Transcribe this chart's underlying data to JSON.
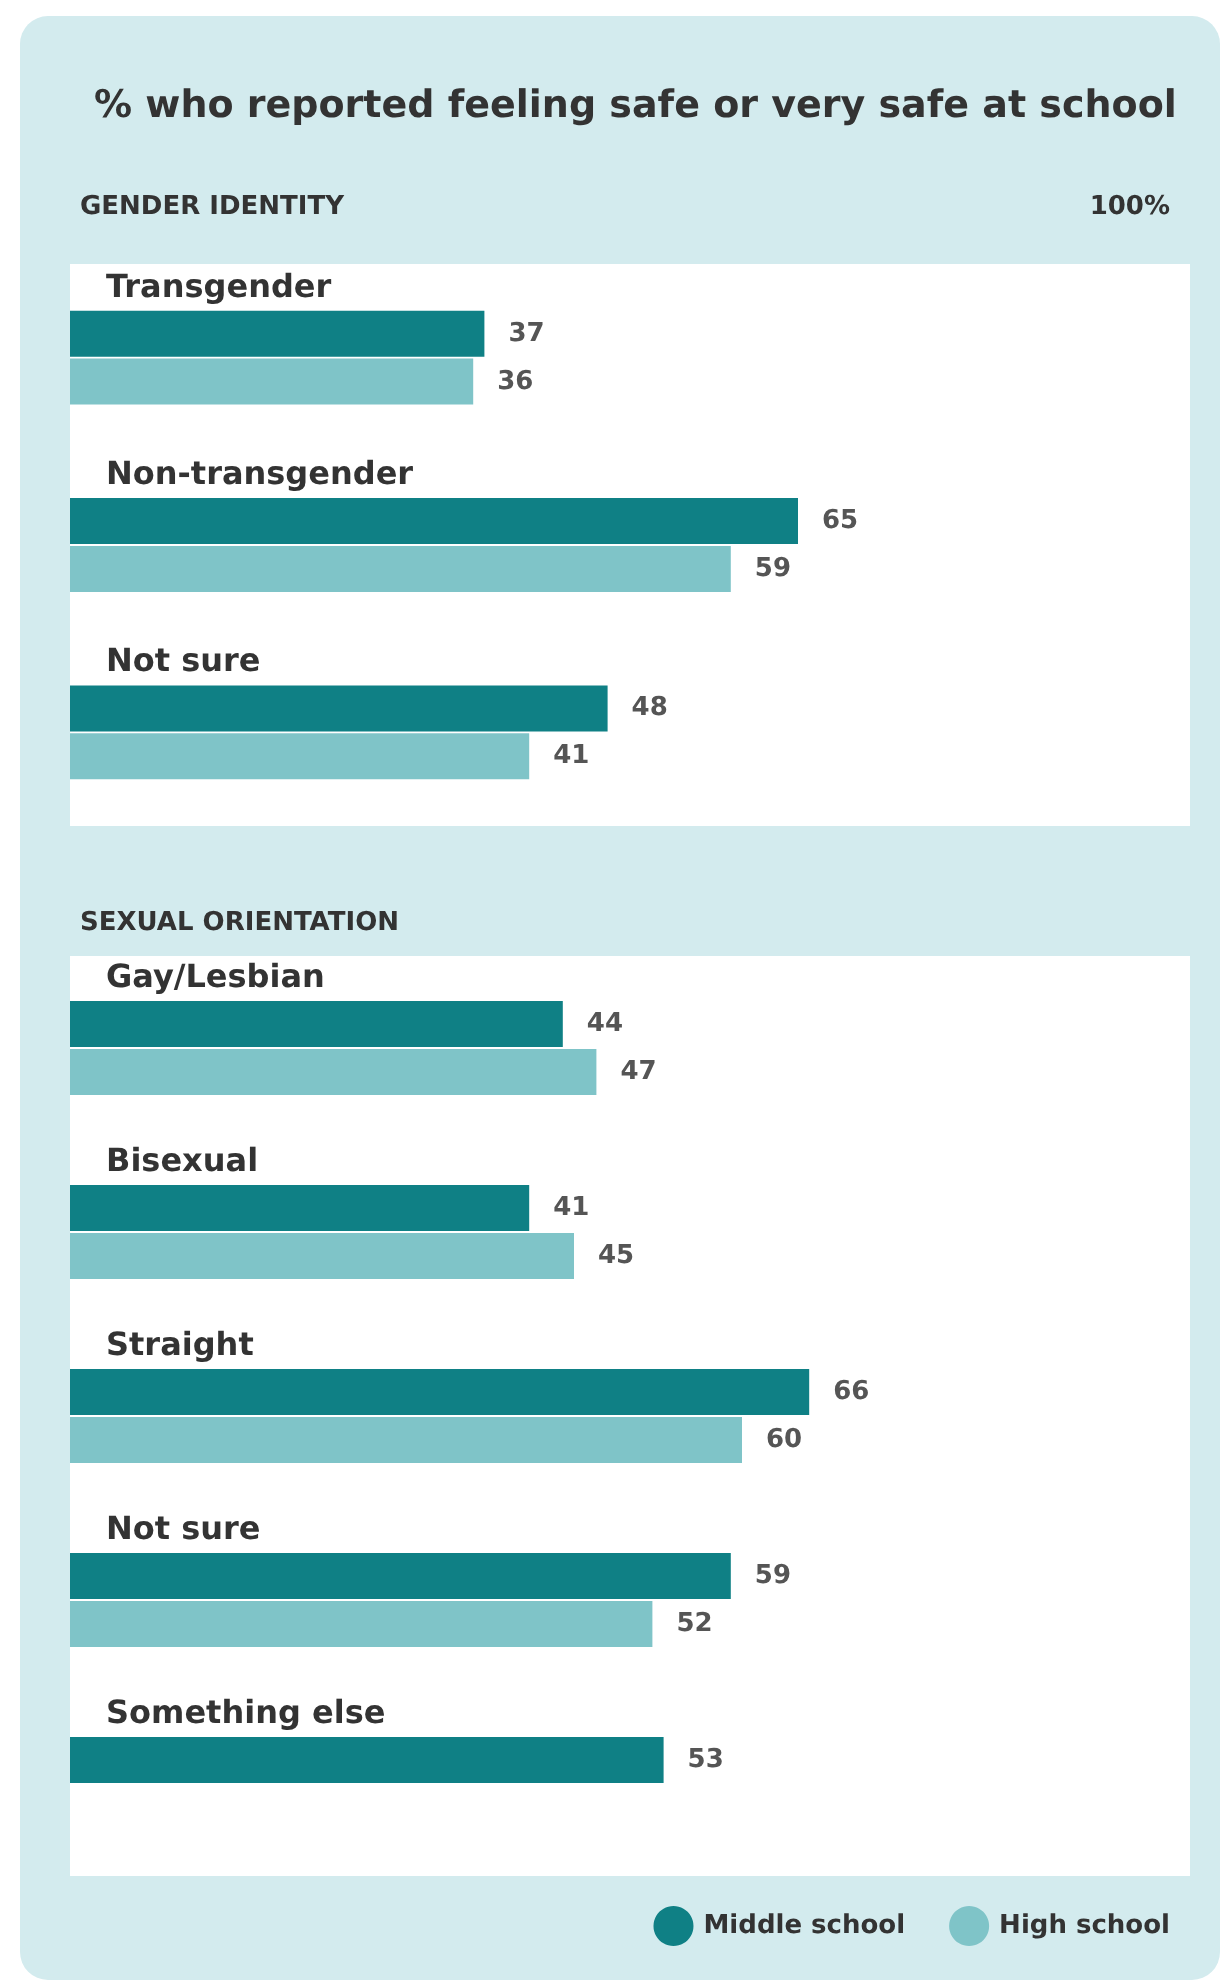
{
  "chart_data": [
    {
      "type": "bar",
      "orientation": "horizontal",
      "title": "% who reported feeling safe or very safe at school",
      "subtitle": "GENDER IDENTITY",
      "categories": [
        "Transgender",
        "Non-transgender",
        "Not sure"
      ],
      "series": [
        {
          "color": "#0f8085",
          "values": [
            37,
            65,
            48
          ]
        },
        {
          "color": "#7fc4c8",
          "values": [
            36,
            59,
            41
          ]
        }
      ],
      "xlim": [
        0,
        100
      ],
      "annotations": [
        "100%"
      ],
      "data_labels": true,
      "legend": false
    },
    {
      "type": "bar",
      "orientation": "horizontal",
      "title": "SEXUAL ORIENTATION",
      "categories": [
        "Gay/Lesbian",
        "Bisexual",
        "Straight",
        "Not sure",
        "Something else"
      ],
      "series": [
        {
          "name": "Middle school",
          "color": "#0f8085",
          "values": [
            44,
            41,
            66,
            59,
            53
          ]
        },
        {
          "name": "High school",
          "color": "#7fc4c8",
          "values": [
            47,
            45,
            60,
            52,
            null
          ]
        }
      ],
      "xlim": [
        0,
        100
      ],
      "tick_labels": "y",
      "data_labels": true,
      "legend": "bottom right"
    }
  ]
}
